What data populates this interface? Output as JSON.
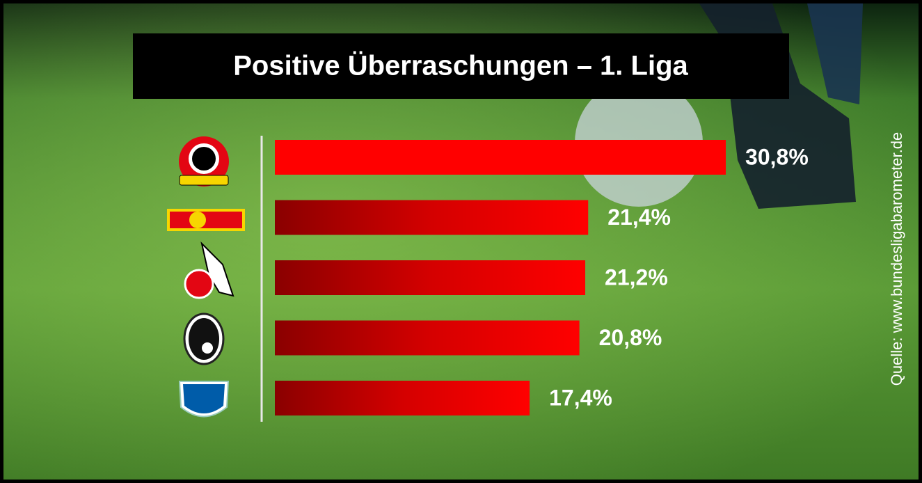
{
  "chart_data": {
    "type": "bar",
    "orientation": "horizontal",
    "title": "Positive Überraschungen – 1. Liga",
    "source": "Quelle: www.bundesligabarometer.de",
    "categories": [
      null,
      null,
      null,
      null,
      null
    ],
    "values": [
      30.8,
      21.4,
      21.2,
      20.8,
      17.4
    ],
    "value_labels": [
      "30,8%",
      "21,4%",
      "21,2%",
      "20,8%",
      "17,4%"
    ],
    "color": "#ff0000"
  }
}
